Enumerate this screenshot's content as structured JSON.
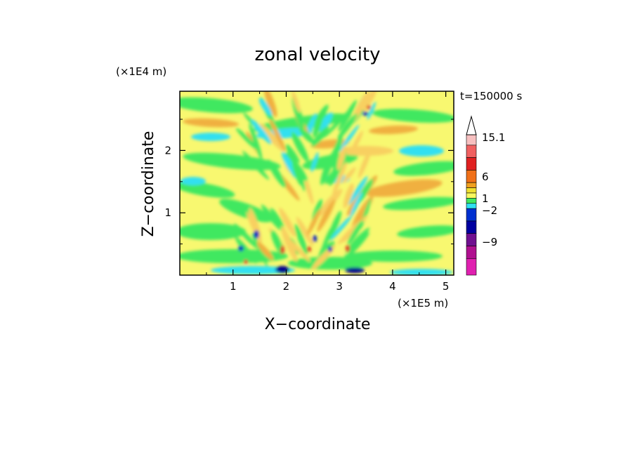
{
  "chart_data": {
    "type": "heatmap",
    "title": "zonal velocity",
    "xlabel": "X−coordinate",
    "ylabel": "Z−coordinate",
    "x_unit": "(×1E5 m)",
    "y_unit": "(×1E4 m)",
    "time_label": "t=150000 s",
    "x_ticks": [
      "1",
      "2",
      "3",
      "4",
      "5"
    ],
    "x_tick_values": [
      1,
      2,
      3,
      4,
      5
    ],
    "y_ticks": [
      "1",
      "2"
    ],
    "y_tick_values": [
      1,
      2
    ],
    "xlim": [
      0,
      5.15
    ],
    "ylim": [
      0,
      2.95
    ],
    "colorbar": {
      "labels": [
        "15.1",
        "6",
        "1",
        "−2",
        "−9"
      ],
      "levels": [
        15.1,
        6,
        1,
        -2,
        -9
      ],
      "colors": [
        "#f7c0c0",
        "#f06060",
        "#e02020",
        "#f07018",
        "#f0a020",
        "#f0e030",
        "#f8f860",
        "#40e860",
        "#30e0f0",
        "#0030d0",
        "#0000a0",
        "#701090",
        "#b01090",
        "#e020b0"
      ],
      "extend_top": true
    },
    "palette": {
      "background": "#f8f870",
      "green": "#40e860",
      "cyan": "#30e0f0",
      "orange": "#f0b040",
      "light_orange": "#f8d060",
      "red": "#e03020",
      "blue": "#0020c0",
      "navy": "#000090"
    }
  }
}
